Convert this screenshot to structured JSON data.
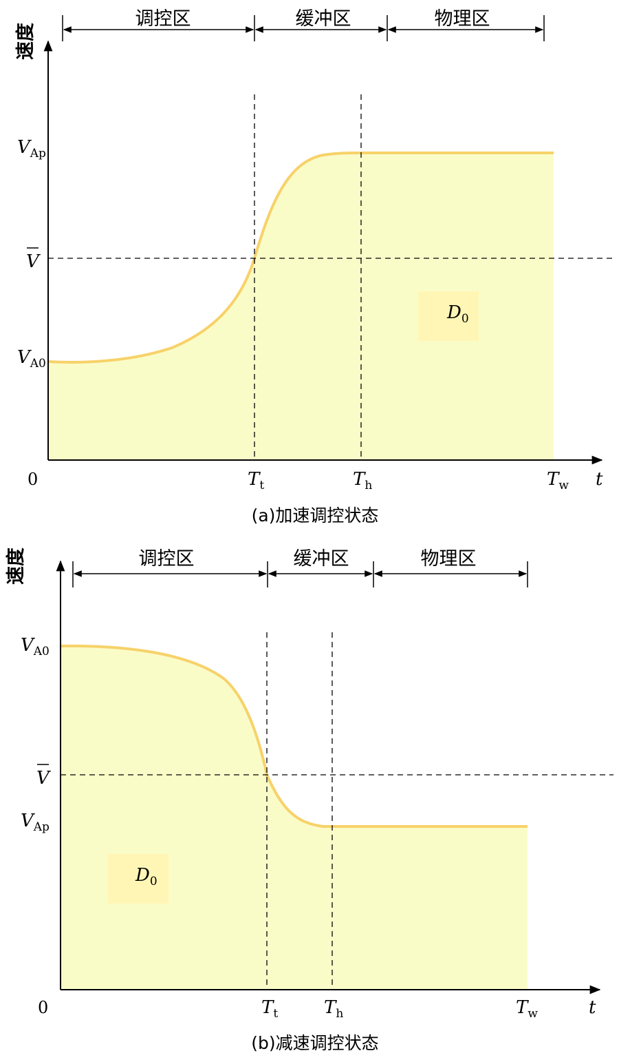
{
  "colors": {
    "curve": "#f7d26a",
    "fill": "#fafcc8",
    "d0_box": "#fff6b5",
    "axis": "#000000"
  },
  "panels": [
    {
      "id": "a",
      "caption": "(a)加速调控状态",
      "y_axis_label": "速度",
      "x_axis_label": "t",
      "origin_label": "0",
      "zones": [
        "调控区",
        "缓冲区",
        "物理区"
      ],
      "y_ticks": [
        {
          "main": "V",
          "sub": "Ap"
        },
        {
          "main": "V",
          "sub": "",
          "overline": true
        },
        {
          "main": "V",
          "sub": "A0"
        }
      ],
      "x_ticks": [
        {
          "main": "T",
          "sub": "t"
        },
        {
          "main": "T",
          "sub": "h"
        },
        {
          "main": "T",
          "sub": "w"
        }
      ],
      "region_label": {
        "main": "D",
        "sub": "0"
      }
    },
    {
      "id": "b",
      "caption": "(b)减速调控状态",
      "y_axis_label": "速度",
      "x_axis_label": "t",
      "origin_label": "0",
      "zones": [
        "调控区",
        "缓冲区",
        "物理区"
      ],
      "y_ticks": [
        {
          "main": "V",
          "sub": "A0"
        },
        {
          "main": "V",
          "sub": "",
          "overline": true
        },
        {
          "main": "V",
          "sub": "Ap"
        }
      ],
      "x_ticks": [
        {
          "main": "T",
          "sub": "t"
        },
        {
          "main": "T",
          "sub": "h"
        },
        {
          "main": "T",
          "sub": "w"
        }
      ],
      "region_label": {
        "main": "D",
        "sub": "0"
      }
    }
  ]
}
